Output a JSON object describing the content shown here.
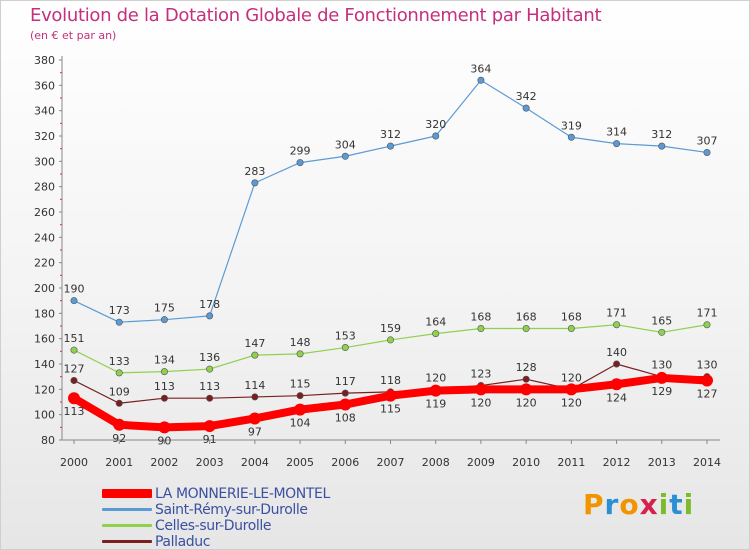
{
  "title": "Evolution de la Dotation Globale de Fonctionnement par Habitant",
  "subtitle": "(en € et par an)",
  "logo": {
    "text": "Proxiti",
    "colors": [
      "#f29400",
      "#2b8fd6",
      "#7bbb2c",
      "#d6224a"
    ]
  },
  "chart_data": {
    "type": "line",
    "x": [
      "2000",
      "2001",
      "2002",
      "2003",
      "2004",
      "2005",
      "2006",
      "2007",
      "2008",
      "2009",
      "2010",
      "2011",
      "2012",
      "2013",
      "2014"
    ],
    "ylim": [
      80,
      380
    ],
    "yticks": [
      80,
      100,
      120,
      140,
      160,
      180,
      200,
      220,
      240,
      260,
      280,
      300,
      320,
      340,
      360,
      380
    ],
    "grid": false,
    "legend_position": "bottom-left",
    "series": [
      {
        "name": "LA MONNERIE-LE-MONTEL",
        "color": "#ff0000",
        "values": [
          113,
          92,
          90,
          91,
          97,
          104,
          108,
          115,
          119,
          120,
          120,
          120,
          124,
          129,
          127
        ],
        "labels": [
          "113",
          "92",
          "90",
          "91",
          "97",
          "104",
          "108",
          "115",
          "119",
          "120",
          "120",
          "120",
          "124",
          "129",
          "127"
        ]
      },
      {
        "name": "Saint-Rémy-sur-Durolle",
        "color": "#5b9bd5",
        "values": [
          190,
          173,
          175,
          178,
          283,
          299,
          304,
          312,
          320,
          364,
          342,
          319,
          314,
          312,
          307
        ],
        "labels": [
          "190",
          "173",
          "175",
          "178",
          "283",
          "299",
          "304",
          "312",
          "320",
          "364",
          "342",
          "319",
          "314",
          "312",
          "307"
        ]
      },
      {
        "name": "Celles-sur-Durolle",
        "color": "#8fd14f",
        "values": [
          151,
          133,
          134,
          136,
          147,
          148,
          153,
          159,
          164,
          168,
          168,
          168,
          171,
          165,
          171
        ],
        "labels": [
          "151",
          "133",
          "134",
          "136",
          "147",
          "148",
          "153",
          "159",
          "164",
          "168",
          "168",
          "168",
          "171",
          "165",
          "171"
        ]
      },
      {
        "name": "Palladuc",
        "color": "#7a1f1f",
        "values": [
          127,
          109,
          113,
          113,
          114,
          115,
          117,
          118,
          120,
          123,
          128,
          120,
          140,
          130,
          130
        ],
        "labels": [
          "127",
          "109",
          "113",
          "113",
          "114",
          "115",
          "117",
          "118",
          "120",
          "123",
          "128",
          "120",
          "140",
          "130",
          "130"
        ]
      }
    ]
  }
}
